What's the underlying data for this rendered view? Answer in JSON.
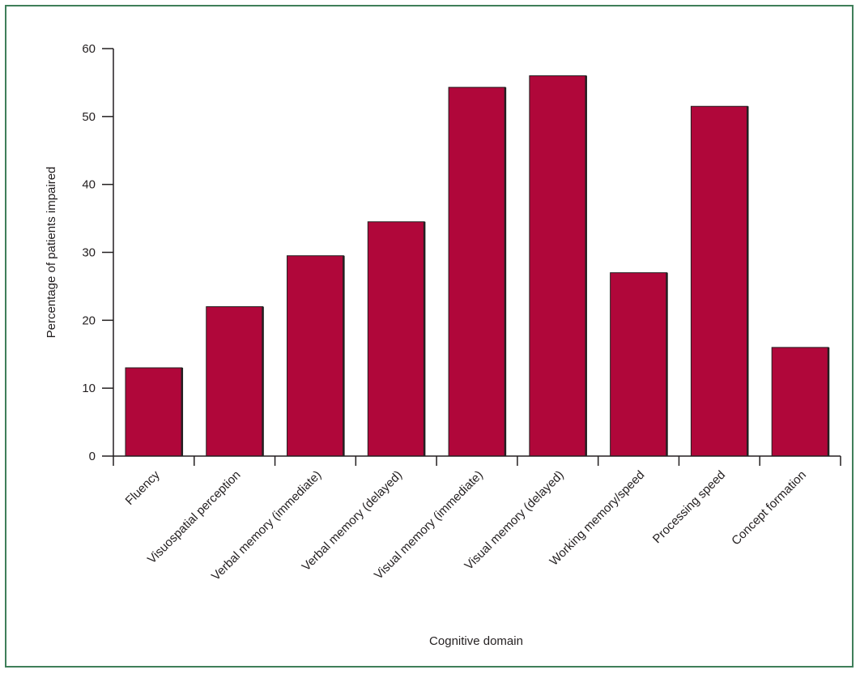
{
  "chart_data": {
    "type": "bar",
    "title": "",
    "xlabel": "Cognitive domain",
    "ylabel": "Percentage of patients impaired",
    "categories": [
      "Fluency",
      "Visuospatial perception",
      "Verbal memory (immediate)",
      "Verbal memory (delayed)",
      "Visual memory (immediate)",
      "Visual memory (delayed)",
      "Working memory/speed",
      "Processing speed",
      "Concept formation"
    ],
    "values": [
      13,
      22,
      29.5,
      34.5,
      54.3,
      56,
      27,
      51.5,
      16
    ],
    "ylim": [
      0,
      60
    ],
    "yticks": [
      0,
      10,
      20,
      30,
      40,
      50,
      60
    ],
    "grid": false,
    "legend": "none",
    "bar_color": "#b0073a",
    "frame_color": "#3f7f5a"
  }
}
